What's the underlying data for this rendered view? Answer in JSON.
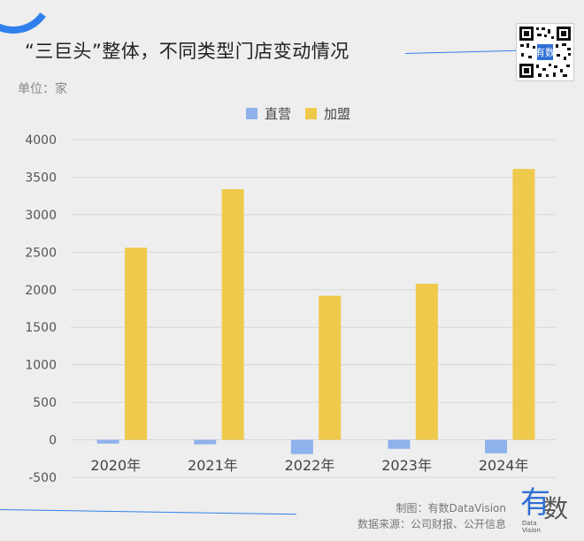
{
  "header": {
    "title": "“三巨头”整体，不同类型门店变动情况",
    "unit": "单位：家"
  },
  "colors": {
    "direct": "#8fb2ec",
    "franchise": "#efc94c",
    "accent": "#2f80ed"
  },
  "footer": {
    "made_by": "制图：有数DataVision",
    "source": "数据来源：公司财报、公开信息",
    "logo_main": "有",
    "logo_second": "数",
    "logo_small": "Data Vision"
  },
  "chart_data": {
    "type": "bar",
    "title": "“三巨头”整体，不同类型门店变动情况",
    "ylabel": "单位：家",
    "categories": [
      "2020年",
      "2021年",
      "2022年",
      "2023年",
      "2024年"
    ],
    "series": [
      {
        "name": "直营",
        "values": [
          -50,
          -60,
          -190,
          -120,
          -180
        ]
      },
      {
        "name": "加盟",
        "values": [
          2560,
          3340,
          1920,
          2080,
          3610
        ]
      }
    ],
    "yticks": [
      -500,
      0,
      500,
      1000,
      1500,
      2000,
      2500,
      3000,
      3500,
      4000
    ],
    "ylim": [
      -500,
      4000
    ],
    "grid": true,
    "legend_position": "top-center"
  }
}
